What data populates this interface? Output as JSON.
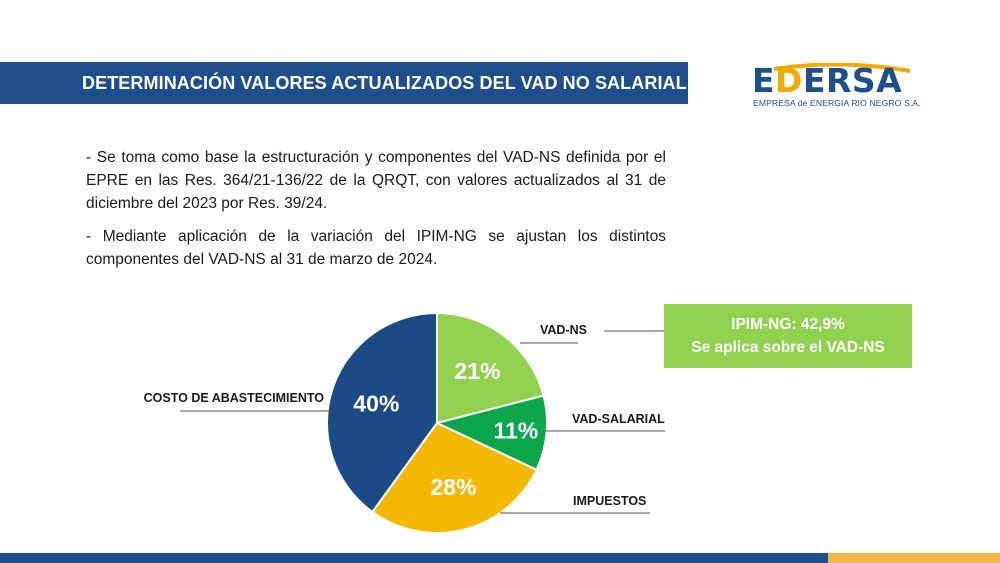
{
  "header": {
    "title": "DETERMINACIÓN VALORES ACTUALIZADOS DEL VAD NO SALARIAL"
  },
  "logo": {
    "word_1": "E",
    "word_2": "D",
    "word_3": "ERSA",
    "subtitle": "EMPRESA de ENERGIA RIO NEGRO S.A."
  },
  "bullets": [
    "- Se toma como base la estructuración y componentes del VAD-NS definida por el EPRE en las Res. 364/21-136/22 de la QRQT, con valores actualizados al 31 de diciembre del 2023 por Res. 39/24.",
    "- Mediante aplicación de la variación del IPIM-NG se ajustan los distintos componentes del VAD-NS al 31 de marzo de 2024."
  ],
  "callout": {
    "line1": "IPIM-NG: 42,9%",
    "line2": "Se aplica sobre el VAD-NS"
  },
  "colors": {
    "brand_blue": "#1f4e8c",
    "light_green": "#92d050",
    "green": "#0aa64b",
    "gold": "#f5b800",
    "navy": "#1b4a84",
    "bar_gold": "#f2b64a"
  },
  "chart_data": {
    "type": "pie",
    "title": "",
    "start_angle_deg": 0,
    "direction": "clockwise",
    "slices": [
      {
        "label": "VAD-NS",
        "value": 21,
        "display": "21%",
        "color": "#92d050"
      },
      {
        "label": "VAD-SALARIAL",
        "value": 11,
        "display": "11%",
        "color": "#0aa64b"
      },
      {
        "label": "IMPUESTOS",
        "value": 28,
        "display": "28%",
        "color": "#f5b800"
      },
      {
        "label": "COSTO DE ABASTECIMIENTO",
        "value": 40,
        "display": "40%",
        "color": "#1b4a84"
      }
    ]
  }
}
